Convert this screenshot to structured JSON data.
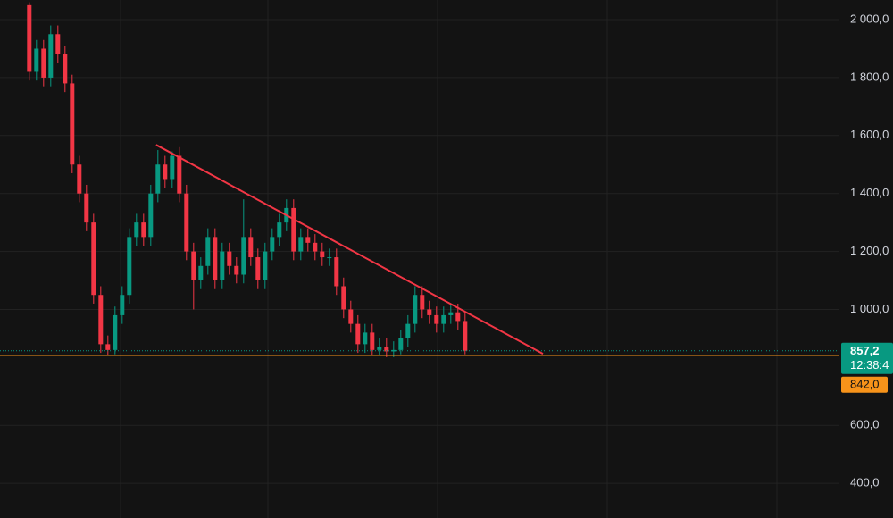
{
  "chart_data": {
    "type": "candlestick",
    "xlim": [
      -4.1,
      113.4
    ],
    "ylim": [
      280,
      2068
    ],
    "yticks": [
      {
        "value": 400,
        "label": "400,0"
      },
      {
        "value": 600,
        "label": "600,0"
      },
      {
        "value": 1000,
        "label": "1 000,0"
      },
      {
        "value": 1200,
        "label": "1 200,0"
      },
      {
        "value": 1400,
        "label": "1 400,0"
      },
      {
        "value": 1600,
        "label": "1 600,0"
      },
      {
        "value": 1800,
        "label": "1 800,0"
      },
      {
        "value": 2000,
        "label": "2 000,0"
      }
    ],
    "grid": true,
    "up_color": "#089981",
    "down_color": "#f23645",
    "open": [
      2050,
      1820,
      1900,
      1800,
      1950,
      1880,
      1780,
      1500,
      1400,
      1300,
      1050,
      880,
      860,
      980,
      1050,
      1250,
      1300,
      1250,
      1400,
      1500,
      1450,
      1530,
      1400,
      1200,
      1100,
      1150,
      1250,
      1100,
      1200,
      1150,
      1120,
      1250,
      1180,
      1100,
      1200,
      1250,
      1300,
      1350,
      1200,
      1250,
      1230,
      1200,
      1180,
      1180,
      1080,
      1000,
      950,
      880,
      920,
      860,
      870,
      855,
      860,
      900,
      950,
      1050,
      1000,
      980,
      950,
      980,
      990,
      960
    ],
    "high": [
      2060,
      1930,
      1930,
      1980,
      1980,
      1910,
      1810,
      1530,
      1430,
      1330,
      1080,
      910,
      1010,
      1080,
      1280,
      1330,
      1330,
      1430,
      1550,
      1530,
      1545,
      1560,
      1430,
      1230,
      1180,
      1280,
      1280,
      1230,
      1230,
      1180,
      1380,
      1280,
      1210,
      1230,
      1280,
      1330,
      1380,
      1380,
      1280,
      1280,
      1260,
      1230,
      1210,
      1210,
      1110,
      1030,
      980,
      950,
      950,
      900,
      900,
      890,
      930,
      980,
      1080,
      1080,
      1030,
      1010,
      1010,
      1020,
      1020,
      990
    ],
    "low": [
      1790,
      1790,
      1770,
      1770,
      1850,
      1750,
      1470,
      1370,
      1270,
      1020,
      850,
      840,
      845,
      950,
      1020,
      1220,
      1220,
      1220,
      1370,
      1420,
      1420,
      1370,
      1170,
      1000,
      1070,
      1120,
      1070,
      1070,
      1120,
      1090,
      1090,
      1150,
      1070,
      1070,
      1170,
      1220,
      1270,
      1170,
      1170,
      1200,
      1170,
      1150,
      1150,
      1050,
      970,
      920,
      850,
      850,
      840,
      840,
      835,
      835,
      845,
      870,
      920,
      970,
      950,
      920,
      920,
      950,
      930,
      845
    ],
    "close": [
      1820,
      1900,
      1800,
      1950,
      1880,
      1780,
      1500,
      1400,
      1300,
      1050,
      880,
      860,
      980,
      1050,
      1250,
      1300,
      1250,
      1400,
      1500,
      1450,
      1530,
      1400,
      1200,
      1100,
      1150,
      1250,
      1100,
      1200,
      1150,
      1120,
      1250,
      1180,
      1100,
      1200,
      1250,
      1300,
      1350,
      1200,
      1250,
      1230,
      1200,
      1180,
      1180,
      1080,
      1000,
      950,
      880,
      920,
      860,
      870,
      855,
      860,
      900,
      950,
      1050,
      1000,
      980,
      950,
      980,
      990,
      960,
      857.2
    ],
    "trend_line": {
      "x": [
        17.75,
        71.9
      ],
      "values": [
        1568,
        847
      ],
      "color": "#f23645"
    },
    "level": {
      "value": 842,
      "label": "842,0",
      "color": "#f7931a"
    },
    "last_price": {
      "value": 857.2,
      "label": "857,2",
      "color": "#089981"
    },
    "countdown": "12:38:4"
  }
}
